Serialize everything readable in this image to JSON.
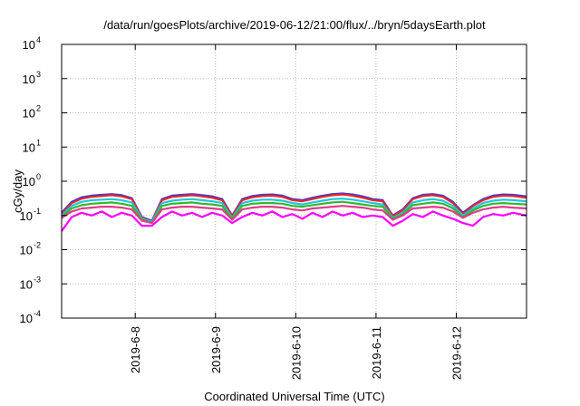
{
  "chart_data": {
    "type": "line",
    "title": "/data/run/goesPlots/archive/2019-06-12/21:00/flux/../bryn/5daysEarth.plot",
    "xlabel": "Coordinated Universal Time (UTC)",
    "ylabel": "cGy/day",
    "y_scale": "log",
    "ylim": [
      0.0001,
      10000
    ],
    "xlim": [
      "2019-06-07 02:00",
      "2019-06-12 21:00"
    ],
    "y_ticks": [
      {
        "value": 0.0001,
        "base": "10",
        "exp": "-4"
      },
      {
        "value": 0.001,
        "base": "10",
        "exp": "-3"
      },
      {
        "value": 0.01,
        "base": "10",
        "exp": "-2"
      },
      {
        "value": 0.1,
        "base": "10",
        "exp": "-1"
      },
      {
        "value": 1,
        "base": "10",
        "exp": "0"
      },
      {
        "value": 10,
        "base": "10",
        "exp": "1"
      },
      {
        "value": 100,
        "base": "10",
        "exp": "2"
      },
      {
        "value": 1000,
        "base": "10",
        "exp": "3"
      },
      {
        "value": 10000,
        "base": "10",
        "exp": "4"
      }
    ],
    "x_ticks": [
      {
        "value": "2019-06-08 00:00",
        "label": "2019-6-8"
      },
      {
        "value": "2019-06-09 00:00",
        "label": "2019-6-9"
      },
      {
        "value": "2019-06-10 00:00",
        "label": "2019-6-10"
      },
      {
        "value": "2019-06-11 00:00",
        "label": "2019-6-11"
      },
      {
        "value": "2019-06-12 00:00",
        "label": "2019-6-12"
      }
    ],
    "grid": true,
    "x": [
      "2019-06-07 02:00",
      "2019-06-07 05:00",
      "2019-06-07 08:00",
      "2019-06-07 11:00",
      "2019-06-07 14:00",
      "2019-06-07 17:00",
      "2019-06-07 20:00",
      "2019-06-07 23:00",
      "2019-06-08 02:00",
      "2019-06-08 05:00",
      "2019-06-08 08:00",
      "2019-06-08 11:00",
      "2019-06-08 14:00",
      "2019-06-08 17:00",
      "2019-06-08 20:00",
      "2019-06-08 23:00",
      "2019-06-09 02:00",
      "2019-06-09 05:00",
      "2019-06-09 08:00",
      "2019-06-09 11:00",
      "2019-06-09 14:00",
      "2019-06-09 17:00",
      "2019-06-09 20:00",
      "2019-06-09 23:00",
      "2019-06-10 02:00",
      "2019-06-10 05:00",
      "2019-06-10 08:00",
      "2019-06-10 11:00",
      "2019-06-10 14:00",
      "2019-06-10 17:00",
      "2019-06-10 20:00",
      "2019-06-10 23:00",
      "2019-06-11 02:00",
      "2019-06-11 05:00",
      "2019-06-11 08:00",
      "2019-06-11 11:00",
      "2019-06-11 14:00",
      "2019-06-11 17:00",
      "2019-06-11 20:00",
      "2019-06-11 23:00",
      "2019-06-12 02:00",
      "2019-06-12 05:00",
      "2019-06-12 08:00",
      "2019-06-12 11:00",
      "2019-06-12 14:00",
      "2019-06-12 17:00",
      "2019-06-12 21:00"
    ],
    "series": [
      {
        "color": "#3a3ad6",
        "values": [
          0.12,
          0.25,
          0.34,
          0.38,
          0.4,
          0.42,
          0.39,
          0.32,
          0.09,
          0.07,
          0.3,
          0.38,
          0.4,
          0.42,
          0.39,
          0.36,
          0.3,
          0.1,
          0.3,
          0.37,
          0.4,
          0.41,
          0.38,
          0.3,
          0.28,
          0.33,
          0.38,
          0.42,
          0.44,
          0.41,
          0.36,
          0.3,
          0.28,
          0.1,
          0.15,
          0.32,
          0.4,
          0.42,
          0.38,
          0.25,
          0.12,
          0.2,
          0.3,
          0.38,
          0.41,
          0.4,
          0.36
        ]
      },
      {
        "color": "#e8262b",
        "values": [
          0.11,
          0.23,
          0.31,
          0.35,
          0.37,
          0.39,
          0.36,
          0.3,
          0.085,
          0.065,
          0.28,
          0.35,
          0.37,
          0.39,
          0.36,
          0.33,
          0.28,
          0.095,
          0.28,
          0.34,
          0.37,
          0.38,
          0.35,
          0.28,
          0.26,
          0.3,
          0.35,
          0.39,
          0.41,
          0.38,
          0.33,
          0.28,
          0.26,
          0.095,
          0.14,
          0.3,
          0.37,
          0.39,
          0.35,
          0.23,
          0.11,
          0.19,
          0.28,
          0.35,
          0.38,
          0.37,
          0.33
        ]
      },
      {
        "color": "#1ec8dc",
        "values": [
          0.1,
          0.19,
          0.25,
          0.28,
          0.29,
          0.3,
          0.28,
          0.24,
          0.08,
          0.065,
          0.23,
          0.27,
          0.29,
          0.3,
          0.28,
          0.26,
          0.23,
          0.085,
          0.23,
          0.27,
          0.29,
          0.29,
          0.27,
          0.23,
          0.21,
          0.24,
          0.27,
          0.3,
          0.31,
          0.29,
          0.26,
          0.23,
          0.21,
          0.085,
          0.12,
          0.24,
          0.28,
          0.3,
          0.27,
          0.19,
          0.1,
          0.16,
          0.23,
          0.27,
          0.29,
          0.28,
          0.26
        ]
      },
      {
        "color": "#2fb82f",
        "values": [
          0.09,
          0.16,
          0.2,
          0.22,
          0.23,
          0.24,
          0.22,
          0.19,
          0.075,
          0.06,
          0.19,
          0.22,
          0.23,
          0.24,
          0.22,
          0.21,
          0.19,
          0.08,
          0.19,
          0.22,
          0.23,
          0.23,
          0.22,
          0.19,
          0.18,
          0.2,
          0.22,
          0.24,
          0.25,
          0.23,
          0.21,
          0.19,
          0.18,
          0.08,
          0.11,
          0.2,
          0.22,
          0.24,
          0.22,
          0.16,
          0.09,
          0.14,
          0.19,
          0.22,
          0.23,
          0.22,
          0.21
        ]
      },
      {
        "color": "#e03c8c",
        "values": [
          0.085,
          0.13,
          0.16,
          0.17,
          0.18,
          0.18,
          0.17,
          0.15,
          0.07,
          0.06,
          0.15,
          0.17,
          0.18,
          0.18,
          0.17,
          0.16,
          0.15,
          0.075,
          0.15,
          0.17,
          0.18,
          0.18,
          0.17,
          0.15,
          0.14,
          0.16,
          0.17,
          0.18,
          0.19,
          0.18,
          0.17,
          0.15,
          0.14,
          0.075,
          0.1,
          0.16,
          0.17,
          0.18,
          0.17,
          0.13,
          0.085,
          0.12,
          0.15,
          0.17,
          0.18,
          0.17,
          0.16
        ]
      },
      {
        "color": "#ff00ff",
        "values": [
          0.035,
          0.09,
          0.12,
          0.1,
          0.13,
          0.09,
          0.12,
          0.1,
          0.05,
          0.05,
          0.09,
          0.13,
          0.1,
          0.12,
          0.09,
          0.12,
          0.1,
          0.06,
          0.09,
          0.12,
          0.1,
          0.13,
          0.09,
          0.11,
          0.08,
          0.12,
          0.09,
          0.13,
          0.1,
          0.12,
          0.09,
          0.1,
          0.09,
          0.05,
          0.07,
          0.11,
          0.09,
          0.13,
          0.1,
          0.08,
          0.06,
          0.05,
          0.09,
          0.11,
          0.1,
          0.12,
          0.1
        ]
      }
    ]
  }
}
